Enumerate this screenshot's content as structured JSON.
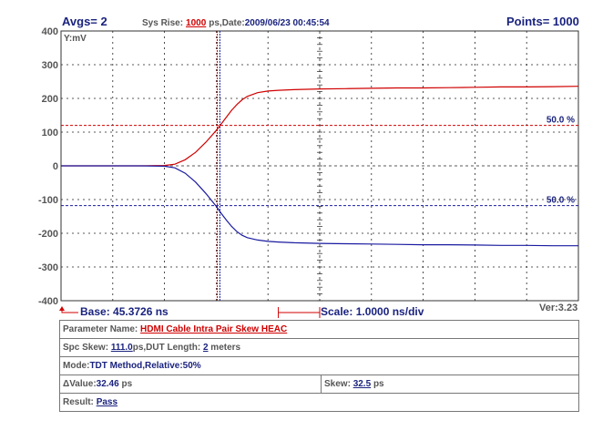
{
  "header": {
    "avgs": "Avgs= 2",
    "sys_rise_label": "Sys Rise:",
    "sys_rise_value": "1000",
    "date_label": "ps,Date:",
    "date_value": "2009/06/23 00:45:54",
    "points": "Points= 1000"
  },
  "footer": {
    "base": "Base: 45.3726 ns",
    "scale": "Scale: 1.0000 ns/div",
    "version": "Ver:3.23"
  },
  "info": {
    "parameter_label": "Parameter Name:",
    "parameter_value": "HDMI Cable Intra Pair Skew HEAC",
    "spc_skew_label": "Spc Skew:",
    "spc_skew_value": "111.0",
    "dut_length_label": "ps,DUT Length:",
    "dut_length_value": "2",
    "dut_length_unit": "meters",
    "mode_label": "Mode:",
    "mode_value": "TDT Method,Relative:50%",
    "delta_symbol": "Δ",
    "delta_label": "Value:",
    "delta_value": "32.46",
    "delta_unit": "ps",
    "skew_label": "Skew:",
    "skew_value": "32.5",
    "skew_unit": "ps",
    "result_label": "Result:",
    "result_value": "Pass"
  },
  "chart_data": {
    "type": "line",
    "ylabel": "Y:mV",
    "ylim": [
      -400,
      400
    ],
    "yticks": [
      400,
      300,
      200,
      100,
      0,
      -100,
      -200,
      -300,
      -400
    ],
    "x_divisions": 10,
    "grid": true,
    "colors": {
      "red": "#d00000",
      "blue": "#1a1aa0",
      "grid": "#222222",
      "axis": "#1a237e"
    },
    "series": [
      {
        "color": "red",
        "x": [
          0,
          0.5,
          1,
          1.5,
          2,
          2.2,
          2.4,
          2.6,
          2.8,
          3,
          3.1,
          3.2,
          3.3,
          3.4,
          3.5,
          3.6,
          3.8,
          4,
          4.2,
          4.5,
          5,
          5.5,
          6,
          6.5,
          7,
          7.5,
          8,
          8.5,
          9,
          9.5,
          10
        ],
        "y": [
          0,
          0,
          0,
          0,
          1,
          5,
          18,
          40,
          70,
          105,
          125,
          145,
          165,
          182,
          196,
          206,
          217,
          222,
          224,
          226,
          228,
          229,
          230,
          231,
          231,
          232,
          233,
          234,
          234,
          235,
          236
        ]
      },
      {
        "color": "blue",
        "x": [
          0,
          0.5,
          1,
          1.5,
          2,
          2.2,
          2.4,
          2.6,
          2.8,
          3,
          3.1,
          3.2,
          3.3,
          3.4,
          3.5,
          3.6,
          3.8,
          4,
          4.2,
          4.5,
          5,
          5.5,
          6,
          6.5,
          7,
          7.5,
          8,
          8.5,
          9,
          9.5,
          10
        ],
        "y": [
          0,
          0,
          0,
          0,
          -1,
          -6,
          -22,
          -48,
          -82,
          -120,
          -142,
          -162,
          -180,
          -195,
          -206,
          -213,
          -220,
          -224,
          -226,
          -228,
          -230,
          -231,
          -232,
          -233,
          -234,
          -234,
          -235,
          -236,
          -236,
          -237,
          -237
        ]
      }
    ],
    "threshold_lines": [
      {
        "color": "red",
        "y": 120,
        "label": "50.0 %"
      },
      {
        "color": "blue",
        "y": -118,
        "label": "50.0 %"
      }
    ],
    "cursors": [
      {
        "color": "red",
        "x": 3.02
      },
      {
        "color": "blue",
        "x": 3.07
      }
    ],
    "scale_span": [
      4.2,
      5.0
    ]
  }
}
